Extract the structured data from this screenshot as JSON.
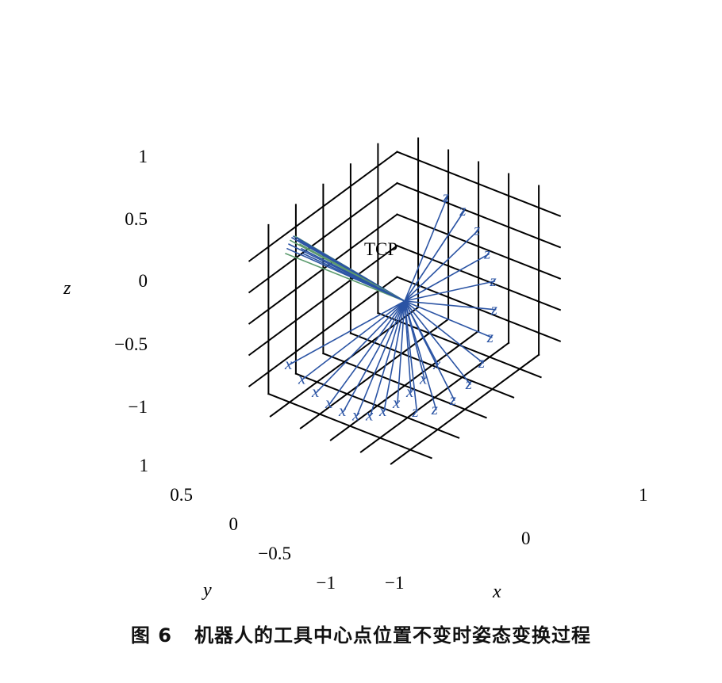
{
  "chart_data": {
    "type": "line",
    "zlabel": "z",
    "ylabel": "y",
    "xlabel": "x",
    "z_ticks": [
      "1",
      "0.5",
      "0",
      "−0.5",
      "−1"
    ],
    "y_ticks": [
      "1",
      "0.5",
      "0",
      "−0.5",
      "−1"
    ],
    "x_ticks": [
      "1",
      "0",
      "−1"
    ],
    "xlim": [
      -1,
      1
    ],
    "ylim": [
      -1,
      1
    ],
    "zlim": [
      -1,
      1
    ],
    "grid": true,
    "annotation": "TCP",
    "x_axis_label": "x",
    "z_axis_label": "z",
    "tcp_point": [
      0,
      0,
      0
    ],
    "frame_count": 12,
    "colors": {
      "x_axis_lines": "#2b54a4",
      "z_axis_lines": "#2b54a4",
      "y_axis_lines": "#5c9b6e"
    }
  },
  "caption": {
    "figure_number": "图 6",
    "text": "机器人的工具中心点位置不变时姿态变换过程"
  }
}
